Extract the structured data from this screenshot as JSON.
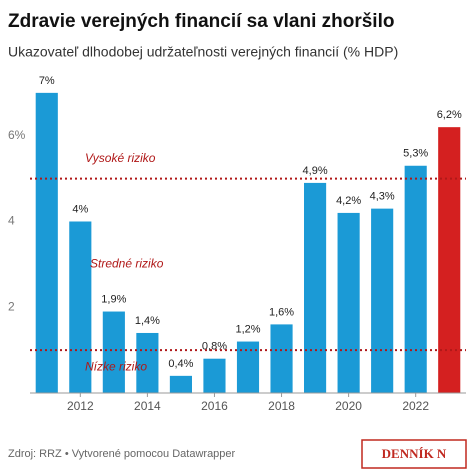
{
  "chart_data": {
    "type": "bar",
    "title": "Zdravie verejných financií sa vlani zhoršilo",
    "subtitle": "Ukazovateľ dlhodobej udržateľnosti verejných financií (% HDP)",
    "x": [
      2011,
      2012,
      2013,
      2014,
      2015,
      2016,
      2017,
      2018,
      2019,
      2020,
      2021,
      2022,
      2023
    ],
    "values": [
      7,
      4,
      1.9,
      1.4,
      0.4,
      0.8,
      1.2,
      1.6,
      4.9,
      4.2,
      4.3,
      5.3,
      6.2
    ],
    "value_labels": [
      "7%",
      "4%",
      "1,9%",
      "1,4%",
      "0,4%",
      "0,8%",
      "1,2%",
      "1,6%",
      "4,9%",
      "4,2%",
      "4,3%",
      "5,3%",
      "6,2%"
    ],
    "colors": [
      "#1b9ad6",
      "#1b9ad6",
      "#1b9ad6",
      "#1b9ad6",
      "#1b9ad6",
      "#1b9ad6",
      "#1b9ad6",
      "#1b9ad6",
      "#1b9ad6",
      "#1b9ad6",
      "#1b9ad6",
      "#1b9ad6",
      "#d42020"
    ],
    "xlim": [
      2010.5,
      2023.5
    ],
    "xticks": [
      2012,
      2014,
      2016,
      2018,
      2020,
      2022
    ],
    "ylim": [
      0,
      7.3
    ],
    "yticks": [
      2,
      4,
      {
        "value": 6,
        "label": "6%"
      }
    ],
    "grid": false,
    "reference_lines": [
      {
        "value": 5,
        "label": "Vysoké riziko"
      },
      {
        "value": 1,
        "label": "Nízke riziko"
      }
    ],
    "middle_label": "Stredné riziko",
    "source": "Zdroj: RRZ • Vytvorené pomocou Datawrapper",
    "logo": "DENNÍK N"
  }
}
